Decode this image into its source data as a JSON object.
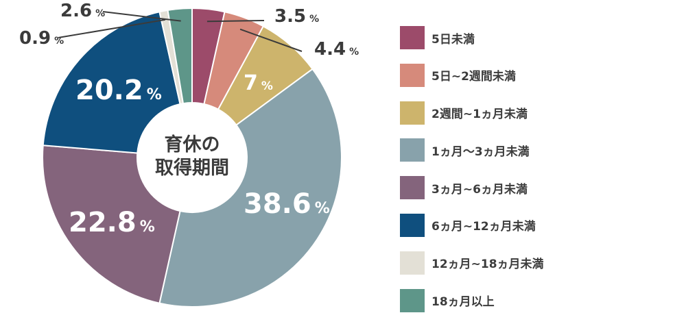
{
  "chart_data": {
    "type": "pie",
    "style": "donut",
    "center_label_lines": [
      "育休の",
      "取得期間"
    ],
    "percent_sign": "%",
    "slices": [
      {
        "label": "5日未満",
        "value": 3.5,
        "display": "3.5",
        "color": "#9c4b6a"
      },
      {
        "label": "5日~2週間未満",
        "value": 4.4,
        "display": "4.4",
        "color": "#d68a7b"
      },
      {
        "label": "2週間~1ヵ月未満",
        "value": 7.0,
        "display": "7",
        "color": "#cdb46c"
      },
      {
        "label": "1ヵ月〜3ヵ月未満",
        "value": 38.6,
        "display": "38.6",
        "color": "#88a2ab"
      },
      {
        "label": "3ヵ月~6ヵ月未満",
        "value": 22.8,
        "display": "22.8",
        "color": "#84647c"
      },
      {
        "label": "6ヵ月~12ヵ月未満",
        "value": 20.2,
        "display": "20.2",
        "color": "#0f4f7e"
      },
      {
        "label": "12ヵ月~18ヵ月未満",
        "value": 0.9,
        "display": "0.9",
        "color": "#e3e0d6"
      },
      {
        "label": "18ヵ月以上",
        "value": 2.6,
        "display": "2.6",
        "color": "#5e9689"
      }
    ],
    "legend_position": "right"
  }
}
